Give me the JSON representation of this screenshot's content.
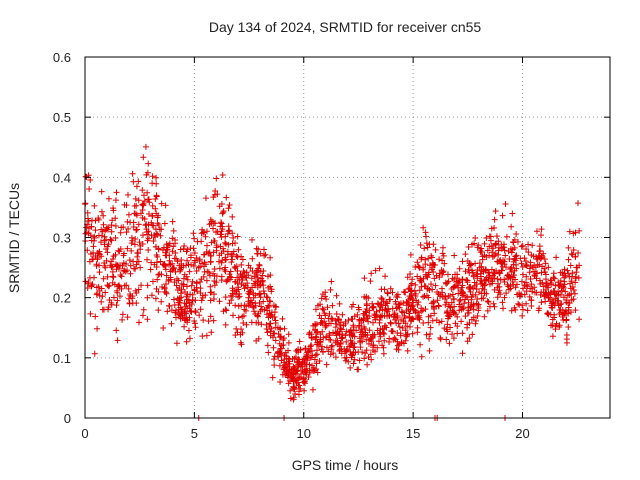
{
  "chart_data": {
    "type": "scatter",
    "title": "Day 134 of 2024, SRMTID for receiver cn55",
    "xlabel": "GPS time / hours",
    "ylabel": "SRMTID / TECUs",
    "xlim": [
      0,
      24
    ],
    "ylim": [
      0,
      0.6
    ],
    "xticks": [
      0,
      5,
      10,
      15,
      20
    ],
    "yticks": [
      0,
      0.1,
      0.2,
      0.3,
      0.4,
      0.5,
      0.6
    ],
    "xtick_labels": [
      "0",
      "5",
      "10",
      "15",
      "20"
    ],
    "ytick_labels": [
      "0",
      "0.1",
      "0.2",
      "0.3",
      "0.4",
      "0.5",
      "0.6"
    ],
    "grid": true,
    "marker": "+",
    "series_color": "#e00000",
    "zero_values_at_hours": [
      5.2,
      9.1,
      16.0,
      16.1,
      19.2
    ],
    "envelope": {
      "x": [
        0,
        0.5,
        1,
        1.5,
        2,
        2.5,
        3,
        3.5,
        4,
        4.5,
        5,
        5.5,
        6,
        6.5,
        7,
        7.5,
        8,
        8.5,
        9,
        9.5,
        10,
        10.5,
        11,
        11.5,
        12,
        12.5,
        13,
        13.5,
        14,
        14.5,
        15,
        15.5,
        16,
        16.5,
        17,
        17.5,
        18,
        18.5,
        19,
        19.5,
        20,
        20.5,
        21,
        21.5,
        22,
        22.5
      ],
      "center": [
        0.33,
        0.24,
        0.26,
        0.26,
        0.27,
        0.3,
        0.33,
        0.27,
        0.24,
        0.21,
        0.21,
        0.25,
        0.28,
        0.26,
        0.22,
        0.2,
        0.22,
        0.17,
        0.11,
        0.075,
        0.08,
        0.12,
        0.17,
        0.14,
        0.13,
        0.14,
        0.16,
        0.17,
        0.17,
        0.16,
        0.2,
        0.22,
        0.22,
        0.2,
        0.19,
        0.21,
        0.23,
        0.24,
        0.25,
        0.25,
        0.24,
        0.24,
        0.23,
        0.19,
        0.2,
        0.26
      ],
      "spread": [
        0.09,
        0.1,
        0.1,
        0.1,
        0.1,
        0.12,
        0.12,
        0.1,
        0.08,
        0.07,
        0.09,
        0.1,
        0.1,
        0.11,
        0.08,
        0.07,
        0.08,
        0.07,
        0.05,
        0.04,
        0.04,
        0.05,
        0.06,
        0.05,
        0.05,
        0.05,
        0.06,
        0.06,
        0.06,
        0.06,
        0.07,
        0.08,
        0.08,
        0.08,
        0.07,
        0.07,
        0.07,
        0.07,
        0.07,
        0.07,
        0.07,
        0.06,
        0.06,
        0.06,
        0.06,
        0.08
      ]
    },
    "point_count": 2200
  }
}
